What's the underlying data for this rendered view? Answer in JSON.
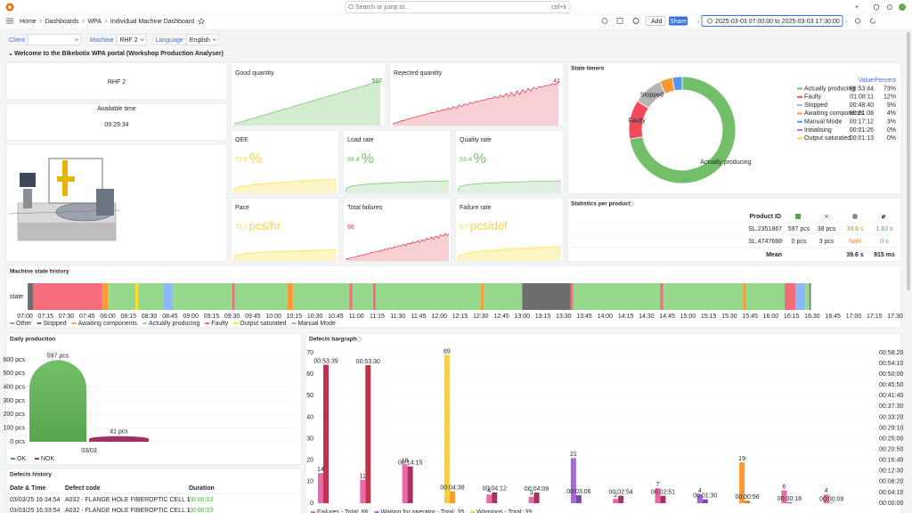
{
  "topbar": {
    "search": "Search or jump to...",
    "shortcut": "ctrl+k",
    "breadcrumbs": [
      "Home",
      "Dashboards",
      "WPA",
      "Individual Machine Dashboard"
    ],
    "add": "Add",
    "share": "Share",
    "time_range": "2025-03-03 07:00:00 to 2025-03-03 17:30:00"
  },
  "variables": [
    {
      "label": "Client"
    },
    {
      "label": "Machine",
      "value": "RHF 2"
    },
    {
      "label": "Language",
      "value": "English"
    }
  ],
  "row_title": "Welcome to the Bikebotix WPA portal (Workshop Production Analyser)",
  "machine": {
    "name": "RHF 2"
  },
  "available_time": {
    "title": "Available time",
    "value": "09:29:34"
  },
  "stats": [
    {
      "title": "Good quantity",
      "value": 597
    },
    {
      "title": "Rejected quantity",
      "value": 41
    },
    {
      "title": "OEE",
      "value": 72.6,
      "unit": "%"
    },
    {
      "title": "Load rate",
      "value": 88.4,
      "unit": "%"
    },
    {
      "title": "Quality rate",
      "value": 93.4,
      "unit": "%"
    },
    {
      "title": "Pace",
      "value": 71.7,
      "unit": "pcs/hr"
    },
    {
      "title": "Total failures",
      "value": 66
    },
    {
      "title": "Failure rate",
      "value": 9.7,
      "unit": "pcs/def"
    }
  ],
  "state_timers": {
    "title": "State timers",
    "columns": [
      "Value",
      "Percent"
    ],
    "rows": [
      {
        "name": "Actually producing",
        "color": "#73bf69",
        "value": "06:53:44"
      },
      {
        "name": "Faulty",
        "color": "#f2495c",
        "value": "01:08:11"
      },
      {
        "name": "Stopped",
        "color": "#b5b5b5",
        "value": "00:48:40"
      },
      {
        "name": "Awaiting components",
        "color": "#ff9830",
        "value": "00:21:08"
      },
      {
        "name": "Manual Mode",
        "color": "#5794f2",
        "value": "00:17:12"
      },
      {
        "name": "Initialising",
        "color": "#b877d9",
        "value": "00:01:26"
      },
      {
        "name": "Output saturated",
        "color": "#fade2a",
        "value": "00:01:13"
      }
    ],
    "percent": [
      73,
      12,
      9,
      4,
      3,
      0,
      0
    ],
    "percent_labels": [
      "73%",
      "12%",
      "9%",
      "4%",
      "3%",
      "0%",
      "0%"
    ]
  },
  "statistics": {
    "title": "Statistics per product",
    "product_header": "Product ID",
    "mean_header": "⌀",
    "rows": [
      [
        "SL.2351867",
        "597 pcs",
        "38 pcs",
        "39.6 s",
        "1.83 s"
      ],
      [
        "SL.4747688",
        "0 pcs",
        "3 pcs",
        "NaN",
        "0 s"
      ]
    ],
    "footer": [
      "Mean",
      "39.6 s",
      "915 ms"
    ]
  },
  "state_history": {
    "title": "Machine state history",
    "row_label": "state",
    "ticks": [
      "07:00",
      "07:15",
      "07:30",
      "07:45",
      "08:00",
      "08:15",
      "08:30",
      "08:45",
      "09:00",
      "09:15",
      "09:30",
      "09:45",
      "10:00",
      "10:15",
      "10:30",
      "10:45",
      "11:00",
      "11:15",
      "11:30",
      "11:45",
      "12:00",
      "12:15",
      "12:30",
      "12:45",
      "13:00",
      "13:15",
      "13:30",
      "13:45",
      "14:00",
      "14:15",
      "14:30",
      "14:45",
      "15:00",
      "15:15",
      "15:30",
      "15:45",
      "16:00",
      "16:15",
      "16:30",
      "16:45",
      "17:00",
      "17:15",
      "17:30"
    ],
    "legend": [
      {
        "name": "Other",
        "color": "#9a9a9a"
      },
      {
        "name": "Stopped",
        "color": "#6e6e6e"
      },
      {
        "name": "Awaiting components",
        "color": "#ff9830"
      },
      {
        "name": "Actually producing",
        "color": "#96d98d"
      },
      {
        "name": "Faulty",
        "color": "#f46b7c"
      },
      {
        "name": "Output saturated",
        "color": "#fade2a"
      },
      {
        "name": "Manual Mode",
        "color": "#8ab8ff"
      }
    ],
    "segments": [
      {
        "state": "Stopped",
        "start": "07:02",
        "end": "07:06"
      },
      {
        "state": "Faulty",
        "start": "07:06",
        "end": "07:56"
      },
      {
        "state": "Awaiting components",
        "start": "07:56",
        "end": "08:00"
      },
      {
        "state": "Actually producing",
        "start": "08:00",
        "end": "08:20"
      },
      {
        "state": "Output saturated",
        "start": "08:20",
        "end": "08:22"
      },
      {
        "state": "Actually producing",
        "start": "08:22",
        "end": "08:40"
      },
      {
        "state": "Manual Mode",
        "start": "08:40",
        "end": "08:47"
      },
      {
        "state": "Actually producing",
        "start": "08:47",
        "end": "09:30"
      },
      {
        "state": "Faulty",
        "start": "09:30",
        "end": "09:32"
      },
      {
        "state": "Actually producing",
        "start": "09:32",
        "end": "10:10"
      },
      {
        "state": "Awaiting components",
        "start": "10:10",
        "end": "10:14"
      },
      {
        "state": "Actually producing",
        "start": "10:14",
        "end": "10:55"
      },
      {
        "state": "Faulty",
        "start": "10:55",
        "end": "10:57"
      },
      {
        "state": "Actually producing",
        "start": "10:57",
        "end": "11:12"
      },
      {
        "state": "Faulty",
        "start": "11:12",
        "end": "11:14"
      },
      {
        "state": "Actually producing",
        "start": "11:14",
        "end": "12:30"
      },
      {
        "state": "Awaiting components",
        "start": "12:30",
        "end": "12:32"
      },
      {
        "state": "Actually producing",
        "start": "12:32",
        "end": "13:00"
      },
      {
        "state": "Stopped",
        "start": "13:00",
        "end": "13:35"
      },
      {
        "state": "Faulty",
        "start": "13:35",
        "end": "13:37"
      },
      {
        "state": "Actually producing",
        "start": "13:37",
        "end": "14:40"
      },
      {
        "state": "Faulty",
        "start": "14:40",
        "end": "14:42"
      },
      {
        "state": "Actually producing",
        "start": "14:42",
        "end": "15:40"
      },
      {
        "state": "Awaiting components",
        "start": "15:40",
        "end": "15:42"
      },
      {
        "state": "Actually producing",
        "start": "15:42",
        "end": "16:10"
      },
      {
        "state": "Faulty",
        "start": "16:10",
        "end": "16:18"
      },
      {
        "state": "Manual Mode",
        "start": "16:18",
        "end": "16:25"
      },
      {
        "state": "Actually producing",
        "start": "16:25",
        "end": "16:28"
      },
      {
        "state": "Stopped",
        "start": "16:28",
        "end": "16:29"
      }
    ]
  },
  "daily_production": {
    "title": "Daily production",
    "category": "03/03",
    "ylim": [
      0,
      665
    ],
    "yticks": [
      {
        "value": 0,
        "label": "0 pcs"
      },
      {
        "value": 100,
        "label": "100 pcs"
      },
      {
        "value": 200,
        "label": "200 pcs"
      },
      {
        "value": 300,
        "label": "300 pcs"
      },
      {
        "value": 400,
        "label": "400 pcs"
      },
      {
        "value": 500,
        "label": "500 pcs"
      },
      {
        "value": 600,
        "label": "600 pcs"
      }
    ],
    "series": [
      {
        "name": "OK",
        "color": "#56a64b",
        "value": 597,
        "value_label": "597 pcs"
      },
      {
        "name": "NOK",
        "color": "#a3315f",
        "value": 41,
        "value_label": "41 pcs"
      }
    ]
  },
  "defects_bargraph": {
    "title": "Defects bargraph",
    "ylim": [
      0,
      70
    ],
    "yticks": [
      0,
      10,
      20,
      30,
      40,
      50,
      60,
      70
    ],
    "y2lim": [
      0,
      3500
    ],
    "y2ticks": [
      {
        "value": 0,
        "label": "00:00:00"
      },
      {
        "value": 250,
        "label": "00:04:10"
      },
      {
        "value": 500,
        "label": "00:08:20"
      },
      {
        "value": 750,
        "label": "00:12:30"
      },
      {
        "value": 1000,
        "label": "00:16:40"
      },
      {
        "value": 1250,
        "label": "00:20:50"
      },
      {
        "value": 1500,
        "label": "00:25:00"
      },
      {
        "value": 1750,
        "label": "00:29:10"
      },
      {
        "value": 2000,
        "label": "00:33:20"
      },
      {
        "value": 2250,
        "label": "00:37:30"
      },
      {
        "value": 2500,
        "label": "00:41:40"
      },
      {
        "value": 2750,
        "label": "00:45:50"
      },
      {
        "value": 3000,
        "label": "00:50:00"
      },
      {
        "value": 3250,
        "label": "00:54:10"
      },
      {
        "value": 3500,
        "label": "00:58:20"
      }
    ],
    "counts": [
      14,
      11,
      18,
      69,
      4,
      3,
      21,
      2,
      7,
      4,
      19,
      6,
      4
    ],
    "durations": [
      3219,
      3210,
      855,
      278,
      252,
      249,
      186,
      174,
      171,
      90,
      56,
      18,
      9
    ],
    "duration_labels": [
      "00:53:39",
      "00:53:30",
      "00:14:15",
      "00:04:38",
      "00:04:12",
      "00:04:09",
      "00:03:06",
      "00:02:54",
      "00:02:51",
      "00:01:30",
      "00:00:56",
      "00:00:18",
      "00:00:09"
    ],
    "count_colors": [
      "#e96aa8",
      "#e96aa8",
      "#e96aa8",
      "#f5d142",
      "#e96aa8",
      "#e96aa8",
      "#a36ad8",
      "#e96aa8",
      "#e96aa8",
      "#a36ad8",
      "#ff9830",
      "#e96aa8",
      "#e96aa8"
    ],
    "duration_colors": [
      "#c4314b",
      "#c4314b",
      "#a8325e",
      "#ff9830",
      "#a8325e",
      "#a8325e",
      "#7b4ab8",
      "#a8325e",
      "#a8325e",
      "#7b4ab8",
      "#e07b1a",
      "#a8325e",
      "#a8325e"
    ],
    "legend": [
      "Failures - Total: 66",
      "Waiting for operator - Total: 35",
      "Warnings - Total: 39"
    ]
  },
  "defects_history": {
    "title": "Defects history",
    "columns": [
      "Date & Time",
      "Defect code",
      "Duration"
    ],
    "rows": [
      [
        "03/03/25 16:34:54",
        "A032 - FLANGE HOLE FIBEROPTIC CELL 1",
        "00:00:03"
      ],
      [
        "03/03/25 16:33:54",
        "A032 - FLANGE HOLE FIBEROPTIC CELL 1",
        "00:00:03"
      ]
    ]
  }
}
